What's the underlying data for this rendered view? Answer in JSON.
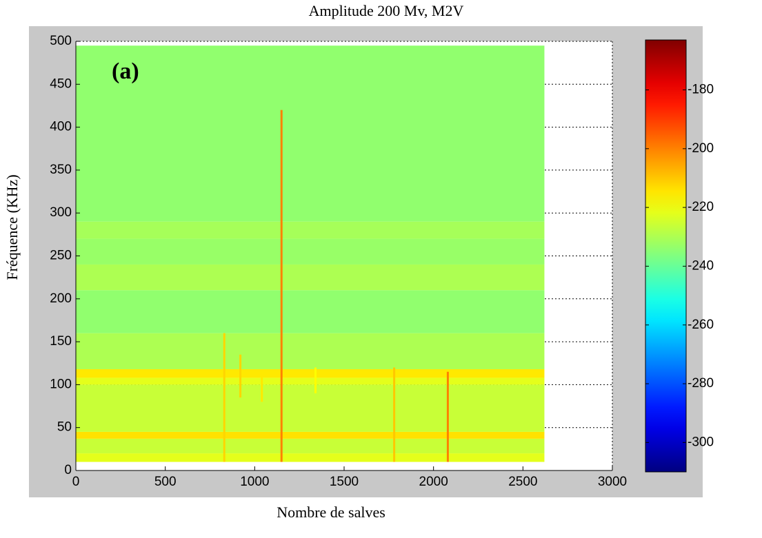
{
  "chart_data": {
    "type": "spectrogram",
    "title": "Amplitude 200 Mv, M2V",
    "xlabel": "Nombre de salves",
    "ylabel": "Fréquence (KHz)",
    "annotation": "(a)",
    "xlim": [
      0,
      3000
    ],
    "xticks": [
      0,
      500,
      1000,
      1500,
      2000,
      2500,
      3000
    ],
    "ylim": [
      0,
      500
    ],
    "yticks": [
      0,
      50,
      100,
      150,
      200,
      250,
      300,
      350,
      400,
      450,
      500
    ],
    "grid": true,
    "colormap": "jet",
    "data_xlim": [
      0,
      2620
    ],
    "bands": [
      {
        "y": [
          10,
          20
        ],
        "value": -222
      },
      {
        "y": [
          20,
          37
        ],
        "value": -226
      },
      {
        "y": [
          37,
          45
        ],
        "value": -214
      },
      {
        "y": [
          45,
          100
        ],
        "value": -226
      },
      {
        "y": [
          100,
          108
        ],
        "value": -222
      },
      {
        "y": [
          108,
          118
        ],
        "value": -215
      },
      {
        "y": [
          118,
          160
        ],
        "value": -230
      },
      {
        "y": [
          160,
          210
        ],
        "value": -234
      },
      {
        "y": [
          210,
          240
        ],
        "value": -230
      },
      {
        "y": [
          240,
          270
        ],
        "value": -233
      },
      {
        "y": [
          270,
          290
        ],
        "value": -231
      },
      {
        "y": [
          290,
          495
        ],
        "value": -234
      }
    ],
    "streaks": [
      {
        "x": 830,
        "y": [
          10,
          160
        ],
        "value": -212
      },
      {
        "x": 920,
        "y": [
          85,
          135
        ],
        "value": -212
      },
      {
        "x": 1040,
        "y": [
          80,
          115
        ],
        "value": -215
      },
      {
        "x": 1150,
        "y": [
          10,
          420
        ],
        "value": -200
      },
      {
        "x": 1340,
        "y": [
          90,
          120
        ],
        "value": -218
      },
      {
        "x": 1780,
        "y": [
          10,
          120
        ],
        "value": -210
      },
      {
        "x": 2080,
        "y": [
          10,
          115
        ],
        "value": -200
      }
    ],
    "clim": [
      -310,
      -163
    ],
    "cticks": [
      -300,
      -280,
      -260,
      -240,
      -220,
      -200,
      -180
    ]
  }
}
